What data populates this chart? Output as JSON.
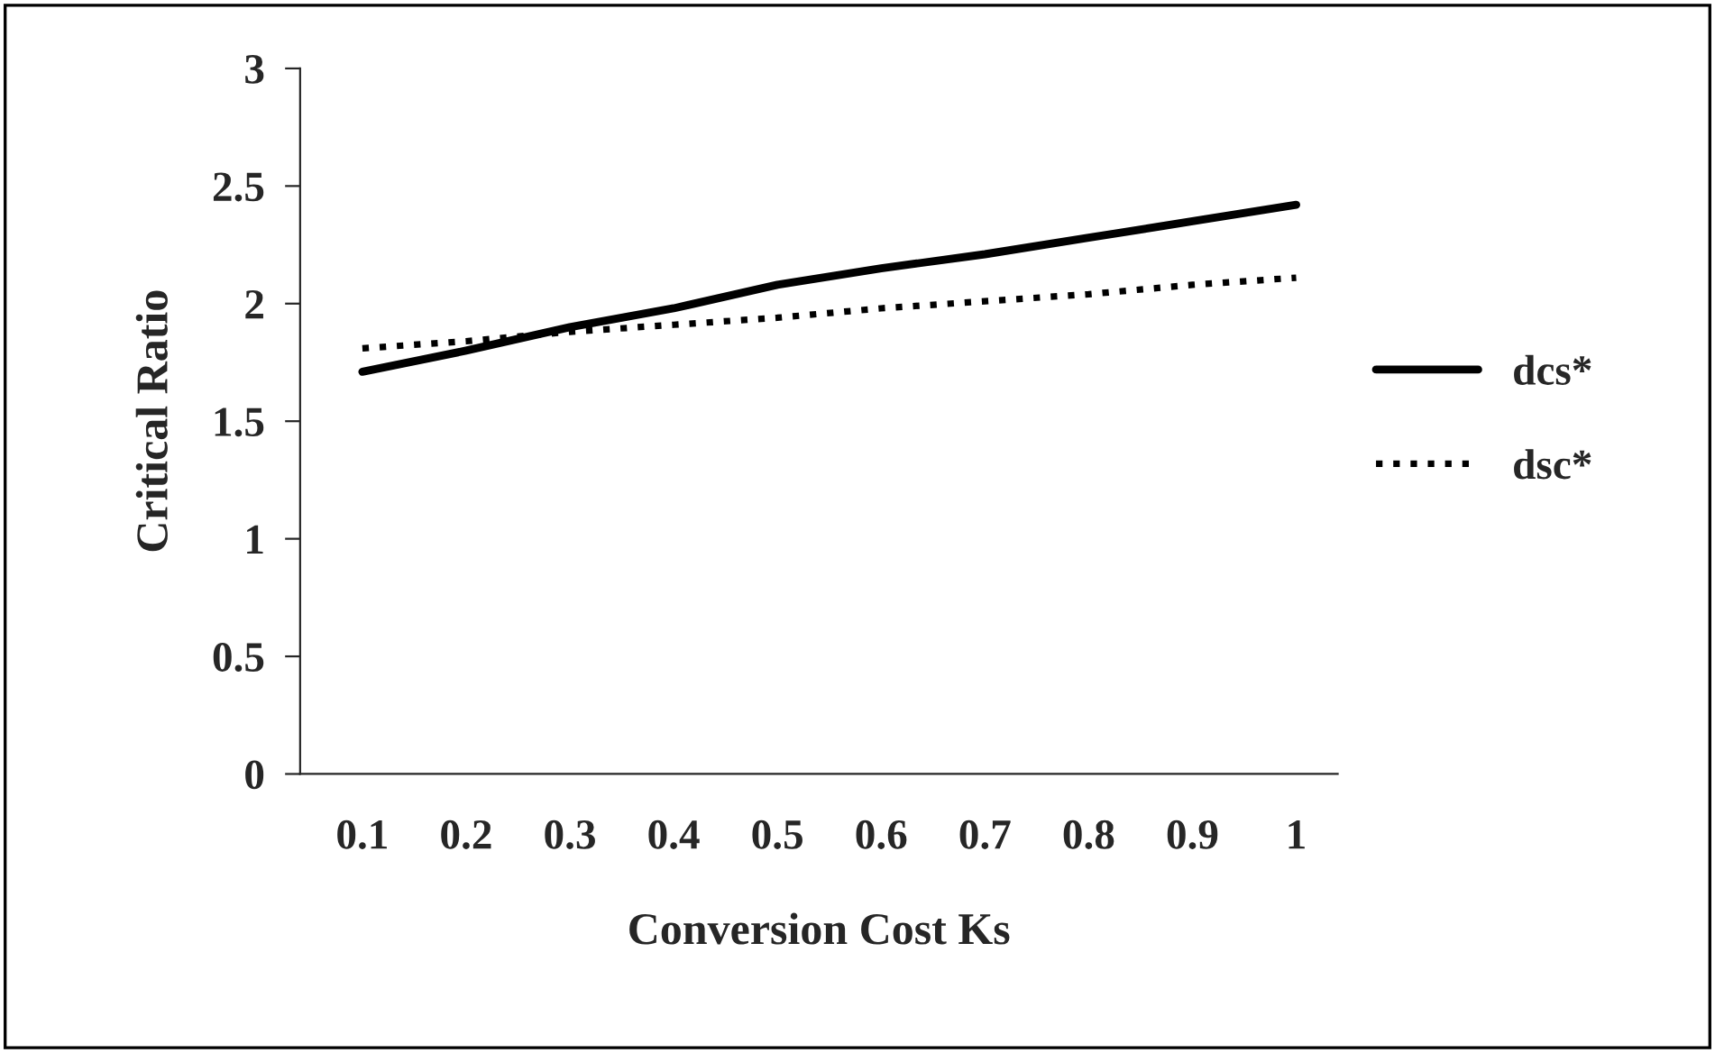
{
  "chart_data": {
    "type": "line",
    "xlabel": "Conversion Cost Ks",
    "ylabel": "Critical Ratio",
    "categories": [
      "0.1",
      "0.2",
      "0.3",
      "0.4",
      "0.5",
      "0.6",
      "0.7",
      "0.8",
      "0.9",
      "1"
    ],
    "series": [
      {
        "name": "dcs*",
        "color": "#000000",
        "line_style": "solid",
        "values": [
          1.71,
          1.8,
          1.9,
          1.98,
          2.08,
          2.15,
          2.21,
          2.28,
          2.35,
          2.42
        ]
      },
      {
        "name": "dsc*",
        "color": "#000000",
        "line_style": "dotted",
        "values": [
          1.81,
          1.84,
          1.88,
          1.91,
          1.94,
          1.98,
          2.01,
          2.04,
          2.08,
          2.11
        ]
      }
    ],
    "ylim": [
      0,
      3
    ],
    "yticks": [
      0,
      0.5,
      1,
      1.5,
      2,
      2.5,
      3
    ],
    "grid": false,
    "legend": "right",
    "marker": "none"
  }
}
